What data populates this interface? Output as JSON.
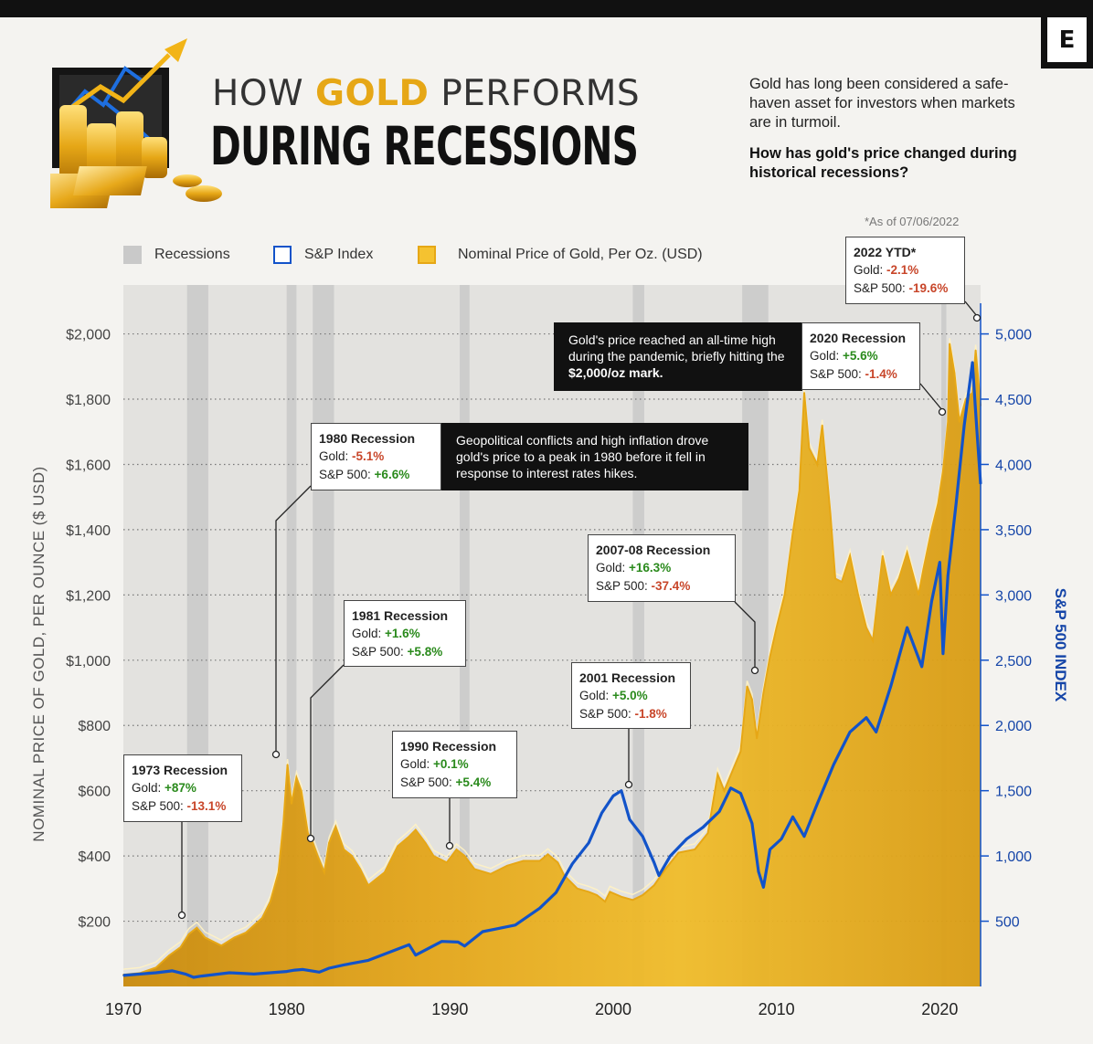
{
  "header": {
    "brand_letter": "E",
    "title_prefix": "HOW ",
    "title_highlight": "GOLD",
    "title_suffix": " PERFORMS",
    "title_main": "DURING RECESSIONS",
    "intro": "Gold has long been considered a safe-haven asset for investors when markets are in turmoil.",
    "question": "How has gold's price changed during historical recessions?",
    "as_of": "*As of 07/06/2022"
  },
  "legend": {
    "recessions": "Recessions",
    "sp_index": "S&P Index",
    "gold": "Nominal Price of Gold, Per Oz. (USD)"
  },
  "colors": {
    "gold": "#e6a716",
    "gold_dark": "#b5780b",
    "sp": "#1253c9",
    "recession": "#c9c9c9",
    "positive": "#2a8a1c",
    "negative": "#c8462a"
  },
  "annotations": {
    "r1973": {
      "title": "1973 Recession",
      "gold_label": "Gold: ",
      "gold_value": "+87%",
      "sp_label": "S&P 500: ",
      "sp_value": "-13.1%"
    },
    "r1980": {
      "title": "1980 Recession",
      "gold_label": "Gold: ",
      "gold_value": "-5.1%",
      "sp_label": "S&P 500: ",
      "sp_value": "+6.6%"
    },
    "r1981": {
      "title": "1981 Recession",
      "gold_label": "Gold: ",
      "gold_value": "+1.6%",
      "sp_label": "S&P 500: ",
      "sp_value": "+5.8%"
    },
    "r1990": {
      "title": "1990 Recession",
      "gold_label": "Gold: ",
      "gold_value": "+0.1%",
      "sp_label": "S&P 500: ",
      "sp_value": "+5.4%"
    },
    "r2001": {
      "title": "2001 Recession",
      "gold_label": "Gold: ",
      "gold_value": "+5.0%",
      "sp_label": "S&P 500: ",
      "sp_value": "-1.8%"
    },
    "r2007": {
      "title": "2007-08 Recession",
      "gold_label": "Gold: ",
      "gold_value": "+16.3%",
      "sp_label": "S&P 500: ",
      "sp_value": "-37.4%"
    },
    "r2020": {
      "title": "2020 Recession",
      "gold_label": "Gold: ",
      "gold_value": "+5.6%",
      "sp_label": "S&P 500: ",
      "sp_value": "-1.4%"
    },
    "r2022": {
      "title": "2022 YTD*",
      "gold_label": "Gold: ",
      "gold_value": "-2.1%",
      "sp_label": "S&P 500: ",
      "sp_value": "-19.6%"
    },
    "note1980": "Geopolitical conflicts and high inflation drove gold's price to a peak in 1980 before it fell in response to interest rates hikes.",
    "note2020_pre": "Gold's price reached an all-time high during the pandemic, briefly hitting the ",
    "note2020_bold": "$2,000/oz mark."
  },
  "chart_data": {
    "type": "area",
    "title": "How Gold Performs During Recessions",
    "xlabel": "",
    "ylabel": "NOMINAL PRICE OF GOLD, PER OUNCE ($ USD)",
    "y2label": "S&P 500 INDEX",
    "xlim": [
      1970,
      2022.5
    ],
    "ylim": [
      0,
      2150
    ],
    "y2lim": [
      0,
      5375
    ],
    "x_ticks": [
      "1970",
      "1980",
      "1990",
      "2000",
      "2010",
      "2020"
    ],
    "y_ticks": [
      "$200",
      "$400",
      "$600",
      "$800",
      "$1,000",
      "$1,200",
      "$1,400",
      "$1,600",
      "$1,800",
      "$2,000"
    ],
    "y2_ticks": [
      "500",
      "1,000",
      "1,500",
      "2,000",
      "2,500",
      "3,000",
      "3,500",
      "4,000",
      "4,500",
      "5,000"
    ],
    "recessions": [
      [
        1973.9,
        1975.2
      ],
      [
        1980.0,
        1980.6
      ],
      [
        1981.6,
        1982.9
      ],
      [
        1990.6,
        1991.2
      ],
      [
        2001.2,
        2001.9
      ],
      [
        2007.9,
        2009.5
      ],
      [
        2020.1,
        2020.4
      ]
    ],
    "series": [
      {
        "name": "Nominal Price of Gold, Per Oz. (USD)",
        "x": [
          1970,
          1971,
          1972,
          1972.8,
          1973.5,
          1974.0,
          1974.5,
          1975.0,
          1976.0,
          1976.8,
          1977.5,
          1978.5,
          1979.0,
          1979.5,
          1979.8,
          1980.05,
          1980.3,
          1980.6,
          1980.9,
          1981.3,
          1981.6,
          1981.9,
          1982.3,
          1982.6,
          1983.0,
          1983.5,
          1984.0,
          1984.5,
          1985.0,
          1985.5,
          1986.0,
          1986.8,
          1987.5,
          1987.9,
          1988.5,
          1989.0,
          1989.8,
          1990.4,
          1990.9,
          1991.5,
          1992.5,
          1993.5,
          1994.5,
          1995.5,
          1996.0,
          1996.6,
          1997.0,
          1997.8,
          1998.5,
          1999.0,
          1999.5,
          1999.8,
          2000.5,
          2001.2,
          2001.8,
          2002.5,
          2003.2,
          2004.0,
          2005.0,
          2005.8,
          2006.4,
          2006.8,
          2007.3,
          2007.8,
          2008.2,
          2008.5,
          2008.8,
          2009.2,
          2009.6,
          2010.0,
          2010.5,
          2011.0,
          2011.4,
          2011.7,
          2012.0,
          2012.5,
          2012.8,
          2013.3,
          2013.6,
          2014.0,
          2014.5,
          2015.0,
          2015.5,
          2015.9,
          2016.5,
          2017.0,
          2017.5,
          2018.0,
          2018.7,
          2019.0,
          2019.5,
          2019.9,
          2020.2,
          2020.5,
          2020.6,
          2020.9,
          2021.2,
          2021.6,
          2022.0,
          2022.2,
          2022.5
        ],
        "values": [
          36,
          41,
          58,
          95,
          120,
          160,
          180,
          150,
          125,
          150,
          165,
          210,
          260,
          350,
          500,
          680,
          560,
          640,
          600,
          470,
          440,
          400,
          350,
          440,
          490,
          420,
          400,
          360,
          310,
          330,
          350,
          430,
          460,
          480,
          440,
          400,
          380,
          420,
          400,
          360,
          345,
          370,
          385,
          385,
          405,
          380,
          340,
          300,
          290,
          280,
          260,
          290,
          275,
          265,
          280,
          310,
          360,
          410,
          420,
          470,
          650,
          600,
          660,
          720,
          920,
          880,
          760,
          900,
          1010,
          1100,
          1200,
          1390,
          1520,
          1820,
          1650,
          1600,
          1720,
          1450,
          1250,
          1240,
          1320,
          1200,
          1100,
          1060,
          1320,
          1200,
          1250,
          1330,
          1200,
          1280,
          1400,
          1480,
          1580,
          1730,
          1970,
          1880,
          1730,
          1800,
          1820,
          1950,
          1780
        ]
      },
      {
        "name": "S&P Index",
        "x": [
          1970,
          1972,
          1973.0,
          1973.8,
          1974.3,
          1974.8,
          1975.5,
          1976.5,
          1978,
          1980,
          1980.5,
          1981,
          1982.0,
          1982.6,
          1983.5,
          1985,
          1987.5,
          1987.9,
          1989.5,
          1990.5,
          1990.9,
          1992,
          1994,
          1995.5,
          1996.5,
          1997.5,
          1998.5,
          1999.3,
          2000.0,
          2000.5,
          2001.0,
          2001.8,
          2002.5,
          2002.8,
          2003.5,
          2004.5,
          2005.5,
          2006.5,
          2007.2,
          2007.8,
          2008.5,
          2008.9,
          2009.2,
          2009.6,
          2010.3,
          2011.0,
          2011.7,
          2012.5,
          2013.5,
          2014.5,
          2015.5,
          2016.1,
          2017.0,
          2018.0,
          2018.9,
          2019.5,
          2020.0,
          2020.2,
          2020.5,
          2021.0,
          2021.5,
          2022.0,
          2022.2,
          2022.5
        ],
        "values": [
          85,
          105,
          120,
          95,
          70,
          80,
          90,
          105,
          95,
          115,
          125,
          130,
          110,
          140,
          165,
          200,
          320,
          240,
          345,
          340,
          310,
          420,
          470,
          600,
          720,
          940,
          1100,
          1330,
          1460,
          1500,
          1280,
          1150,
          950,
          850,
          1000,
          1130,
          1220,
          1340,
          1520,
          1480,
          1250,
          880,
          760,
          1050,
          1130,
          1300,
          1150,
          1400,
          1700,
          1950,
          2060,
          1950,
          2300,
          2750,
          2450,
          2950,
          3250,
          2550,
          3150,
          3700,
          4300,
          4780,
          4400,
          3850
        ]
      }
    ]
  }
}
